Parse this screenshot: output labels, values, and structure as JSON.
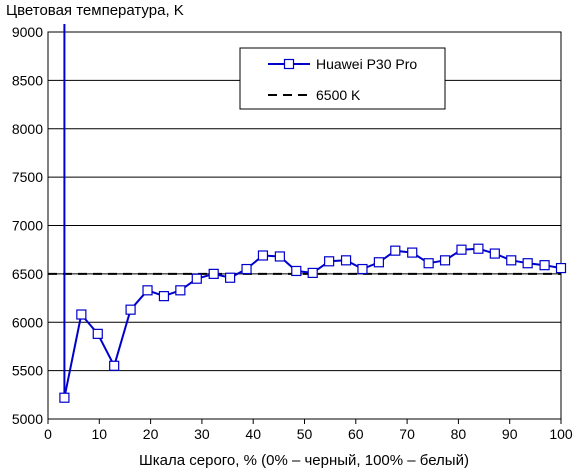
{
  "chart_data": {
    "type": "line",
    "title": "Цветовая температура, K",
    "xlabel": "Шкала серого, % (0% – черный, 100% – белый)",
    "ylabel": "",
    "xlim": [
      0,
      100
    ],
    "ylim": [
      5000,
      9000
    ],
    "xticks": [
      "0",
      "10",
      "20",
      "30",
      "40",
      "50",
      "60",
      "70",
      "80",
      "90",
      "100"
    ],
    "yticks": [
      "9000",
      "8500",
      "8000",
      "7500",
      "7000",
      "6500",
      "6000",
      "5500",
      "5000"
    ],
    "grid": "horizontal",
    "legend_position": "top-right",
    "series": [
      {
        "name": "Huawei P30 Pro",
        "color": "#0000cc",
        "marker": "square",
        "x": [
          3.2,
          6.5,
          9.7,
          12.9,
          16.1,
          19.4,
          22.6,
          25.8,
          29.0,
          32.3,
          35.5,
          38.7,
          41.9,
          45.2,
          48.4,
          51.6,
          54.8,
          58.1,
          61.3,
          64.5,
          67.7,
          71.0,
          74.2,
          77.4,
          80.6,
          83.9,
          87.1,
          90.3,
          93.5,
          96.8,
          100
        ],
        "values": [
          5220,
          6080,
          5880,
          5550,
          6130,
          6330,
          6270,
          6330,
          6450,
          6500,
          6460,
          6550,
          6690,
          6680,
          6530,
          6510,
          6630,
          6640,
          6550,
          6620,
          6740,
          6720,
          6610,
          6640,
          6750,
          6760,
          6710,
          6640,
          6610,
          6590,
          6560
        ],
        "spike_line_x": 3.2
      },
      {
        "name": "6500 K",
        "color": "#000000",
        "style": "dashed",
        "x": [
          0,
          100
        ],
        "values": [
          6500,
          6500
        ]
      }
    ]
  }
}
